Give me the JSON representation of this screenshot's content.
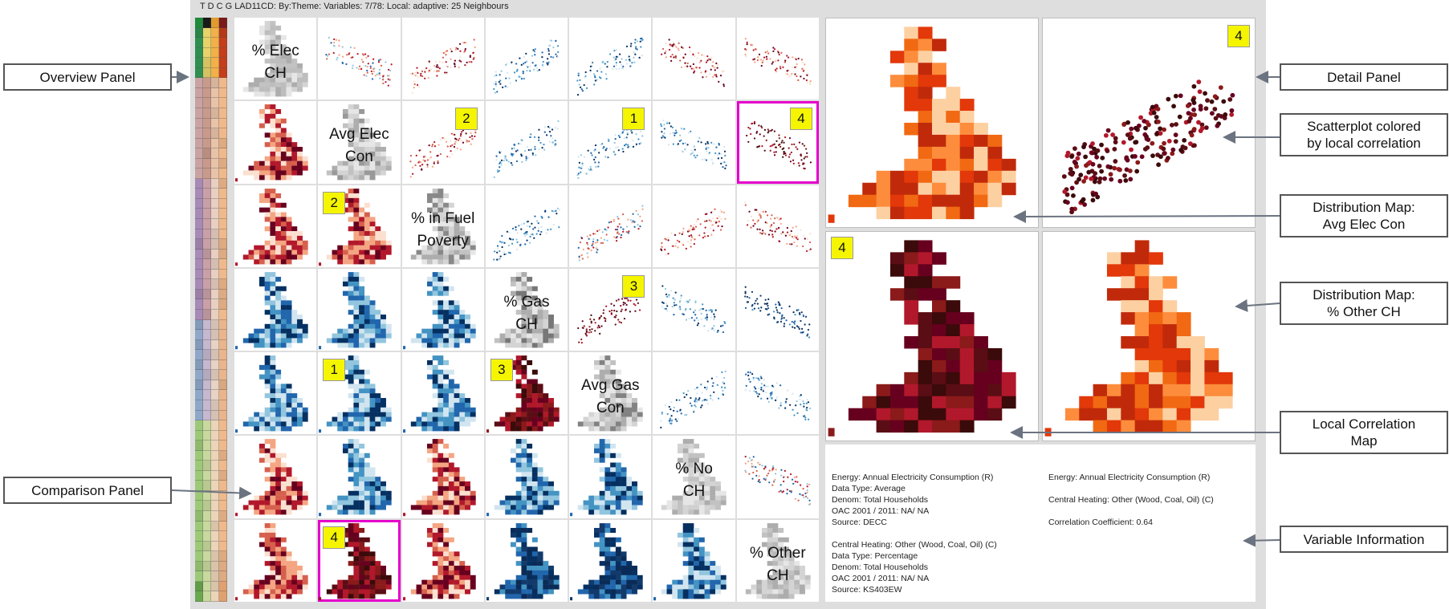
{
  "title": "T D C G LAD11CD: By:Theme: Variables: 7/78: Local: adaptive: 25 Neighbours",
  "overview": {
    "rows": 58,
    "header_colors": [
      "#1f8a3a",
      "#1a1a1a",
      "#e09a2e",
      "#7a1a1a"
    ],
    "band_colors": [
      {
        "until": 6,
        "colors": [
          "#2f8f4f",
          "#e7d36a",
          "#f2b04a",
          "#c43d1c"
        ]
      },
      {
        "until": 16,
        "colors": [
          "#c9a3a3",
          "#c99a8c",
          "#e9c3a8",
          "#f0b98c"
        ]
      },
      {
        "until": 30,
        "colors": [
          "#a88ab6",
          "#c9a0a8",
          "#e8cfc0",
          "#f0b98c"
        ]
      },
      {
        "until": 40,
        "colors": [
          "#8fa7c9",
          "#c5b8cf",
          "#e8d2c4",
          "#eab58c"
        ]
      },
      {
        "until": 56,
        "colors": [
          "#9cc978",
          "#c9d89e",
          "#ecd4b8",
          "#f0b98c"
        ]
      },
      {
        "until": 58,
        "colors": [
          "#6aa84f",
          "#c9d89e",
          "#ecd4b8",
          "#e0a070"
        ]
      }
    ]
  },
  "variables": [
    {
      "label": "% Elec\nCH",
      "color": "#bdbdbd"
    },
    {
      "label": "Avg Elec\nCon",
      "color": "#999999"
    },
    {
      "label": "% in Fuel\nPoverty",
      "color": "#888888"
    },
    {
      "label": "% Gas\nCH",
      "color": "#777777"
    },
    {
      "label": "Avg Gas\nCon",
      "color": "#828282"
    },
    {
      "label": "% No\nCH",
      "color": "#d0d0d0"
    },
    {
      "label": "% Other\nCH",
      "color": "#b8b8b8"
    }
  ],
  "cells": [
    {
      "r": 1,
      "c": 0,
      "kind": "map",
      "pal": "red"
    },
    {
      "r": 2,
      "c": 0,
      "kind": "map",
      "pal": "red"
    },
    {
      "r": 3,
      "c": 0,
      "kind": "map",
      "pal": "blue"
    },
    {
      "r": 4,
      "c": 0,
      "kind": "map",
      "pal": "blue"
    },
    {
      "r": 5,
      "c": 0,
      "kind": "map",
      "pal": "red"
    },
    {
      "r": 6,
      "c": 0,
      "kind": "map",
      "pal": "red"
    },
    {
      "r": 2,
      "c": 1,
      "kind": "map",
      "pal": "red",
      "badge": "2"
    },
    {
      "r": 3,
      "c": 1,
      "kind": "map",
      "pal": "blue"
    },
    {
      "r": 4,
      "c": 1,
      "kind": "map",
      "pal": "blue",
      "badge": "1"
    },
    {
      "r": 5,
      "c": 1,
      "kind": "map",
      "pal": "blue"
    },
    {
      "r": 6,
      "c": 1,
      "kind": "map",
      "pal": "darkred",
      "badge": "4",
      "highlight": true
    },
    {
      "r": 3,
      "c": 2,
      "kind": "map",
      "pal": "blue"
    },
    {
      "r": 4,
      "c": 2,
      "kind": "map",
      "pal": "blue"
    },
    {
      "r": 5,
      "c": 2,
      "kind": "map",
      "pal": "red"
    },
    {
      "r": 6,
      "c": 2,
      "kind": "map",
      "pal": "red"
    },
    {
      "r": 4,
      "c": 3,
      "kind": "map",
      "pal": "darkred",
      "badge": "3"
    },
    {
      "r": 5,
      "c": 3,
      "kind": "map",
      "pal": "blue"
    },
    {
      "r": 6,
      "c": 3,
      "kind": "map",
      "pal": "darkblue"
    },
    {
      "r": 5,
      "c": 4,
      "kind": "map",
      "pal": "blue"
    },
    {
      "r": 6,
      "c": 4,
      "kind": "map",
      "pal": "darkblue"
    },
    {
      "r": 6,
      "c": 5,
      "kind": "map",
      "pal": "blue"
    },
    {
      "r": 0,
      "c": 1,
      "kind": "scatter",
      "pal": "mix"
    },
    {
      "r": 0,
      "c": 2,
      "kind": "scatter",
      "pal": "red"
    },
    {
      "r": 0,
      "c": 3,
      "kind": "scatter",
      "pal": "blue"
    },
    {
      "r": 0,
      "c": 4,
      "kind": "scatter",
      "pal": "blue"
    },
    {
      "r": 0,
      "c": 5,
      "kind": "scatter",
      "pal": "red"
    },
    {
      "r": 0,
      "c": 6,
      "kind": "scatter",
      "pal": "red"
    },
    {
      "r": 1,
      "c": 2,
      "kind": "scatter",
      "pal": "red",
      "badge": "2"
    },
    {
      "r": 1,
      "c": 3,
      "kind": "scatter",
      "pal": "blue"
    },
    {
      "r": 1,
      "c": 4,
      "kind": "scatter",
      "pal": "blue",
      "badge": "1"
    },
    {
      "r": 1,
      "c": 5,
      "kind": "scatter",
      "pal": "blue"
    },
    {
      "r": 1,
      "c": 6,
      "kind": "scatter",
      "pal": "darkred",
      "badge": "4",
      "highlight": true
    },
    {
      "r": 2,
      "c": 3,
      "kind": "scatter",
      "pal": "blue"
    },
    {
      "r": 2,
      "c": 4,
      "kind": "scatter",
      "pal": "mix"
    },
    {
      "r": 2,
      "c": 5,
      "kind": "scatter",
      "pal": "red"
    },
    {
      "r": 2,
      "c": 6,
      "kind": "scatter",
      "pal": "red"
    },
    {
      "r": 3,
      "c": 4,
      "kind": "scatter",
      "pal": "darkred",
      "badge": "3"
    },
    {
      "r": 3,
      "c": 5,
      "kind": "scatter",
      "pal": "blue"
    },
    {
      "r": 3,
      "c": 6,
      "kind": "scatter",
      "pal": "darkblue"
    },
    {
      "r": 4,
      "c": 5,
      "kind": "scatter",
      "pal": "blue"
    },
    {
      "r": 4,
      "c": 6,
      "kind": "scatter",
      "pal": "blue"
    },
    {
      "r": 5,
      "c": 6,
      "kind": "scatter",
      "pal": "mix"
    }
  ],
  "detail": {
    "badge_scatter": "4",
    "badge_local": "4",
    "info_left": [
      "Energy: Annual Electricity Consumption (R)",
      "Data Type: Average",
      "Denom: Total Households",
      "OAC 2001 / 2011: NA/ NA",
      "Source: DECC",
      "",
      "Central Heating: Other (Wood, Coal, Oil) (C)",
      "Data Type: Percentage",
      "Denom: Total Households",
      "OAC 2001 / 2011: NA/ NA",
      "Source: KS403EW"
    ],
    "info_right": [
      "Energy: Annual Electricity Consumption (R)",
      "",
      "Central Heating: Other (Wood, Coal, Oil) (C)",
      "",
      "Correlation Coefficient: 0.64"
    ]
  },
  "callouts": {
    "overview": "Overview Panel",
    "comparison": "Comparison Panel",
    "detail": "Detail Panel",
    "scatter": "Scatterplot colored\nby local correlation",
    "dist_elec": "Distribution Map:\nAvg Elec Con",
    "dist_other": "Distribution Map:\n% Other CH",
    "local_corr": "Local Correlation\nMap",
    "var_info": "Variable Information"
  },
  "colors": {
    "highlight": "#e600cc",
    "badge": "#f5f500",
    "red_scale": [
      "#fbe0d0",
      "#f4a582",
      "#d6604d",
      "#b2182b",
      "#67001f"
    ],
    "blue_scale": [
      "#d1e5f0",
      "#92c5de",
      "#4393c3",
      "#2166ac",
      "#053061"
    ],
    "orange_scale": [
      "#fdd0a2",
      "#fd8d3c",
      "#f16913",
      "#e2380a",
      "#c02a0a"
    ]
  }
}
